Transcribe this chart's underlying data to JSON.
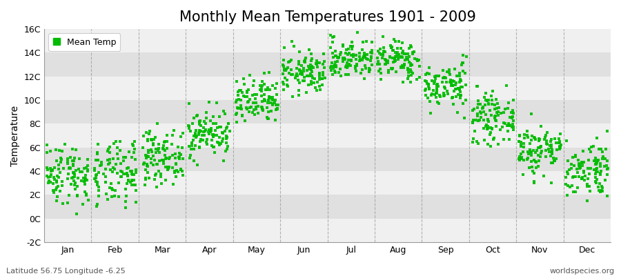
{
  "title": "Monthly Mean Temperatures 1901 - 2009",
  "ylabel": "Temperature",
  "bottom_left": "Latitude 56.75 Longitude -6.25",
  "bottom_right": "worldspecies.org",
  "legend_label": "Mean Temp",
  "dot_color": "#00BB00",
  "background_color": "#ffffff",
  "band_color_light": "#f0f0f0",
  "band_color_dark": "#e0e0e0",
  "ylim": [
    -2,
    16
  ],
  "yticks": [
    -2,
    0,
    2,
    4,
    6,
    8,
    10,
    12,
    14,
    16
  ],
  "ytick_labels": [
    "-2C",
    "0C",
    "2C",
    "4C",
    "6C",
    "8C",
    "10C",
    "12C",
    "14C",
    "16C"
  ],
  "months": [
    "Jan",
    "Feb",
    "Mar",
    "Apr",
    "May",
    "Jun",
    "Jul",
    "Aug",
    "Sep",
    "Oct",
    "Nov",
    "Dec"
  ],
  "monthly_means": [
    3.8,
    3.7,
    5.2,
    7.2,
    9.8,
    12.3,
    13.5,
    13.4,
    11.2,
    8.5,
    5.8,
    4.2
  ],
  "monthly_stds": [
    1.3,
    1.4,
    1.1,
    1.0,
    1.0,
    0.9,
    0.85,
    0.85,
    0.95,
    1.0,
    1.1,
    1.2
  ],
  "monthly_mins": [
    0.2,
    -0.8,
    2.0,
    4.5,
    7.0,
    10.0,
    11.5,
    11.5,
    8.5,
    6.0,
    3.0,
    1.5
  ],
  "monthly_maxs": [
    6.8,
    6.5,
    8.0,
    10.0,
    12.5,
    15.2,
    15.8,
    15.6,
    13.8,
    12.5,
    9.0,
    7.5
  ],
  "n_years": 109,
  "dot_size": 6,
  "dot_alpha": 0.9,
  "title_fontsize": 15,
  "axis_fontsize": 10,
  "tick_fontsize": 9,
  "legend_fontsize": 9,
  "vline_color": "#888888",
  "vline_alpha": 0.6
}
